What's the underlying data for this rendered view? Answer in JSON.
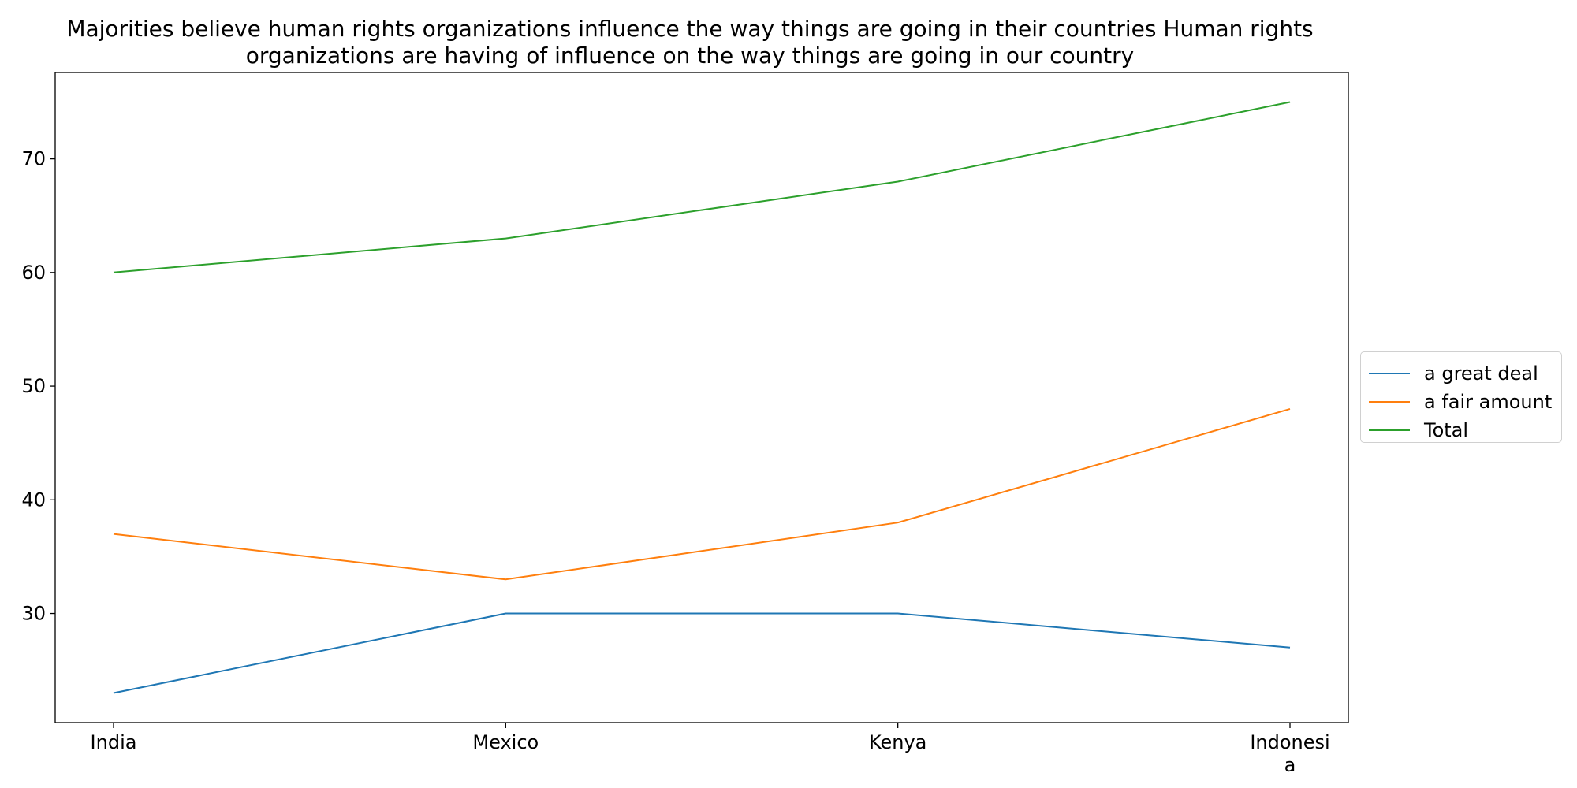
{
  "chart_data": {
    "type": "line",
    "title_lines": [
      "Majorities believe human rights organizations influence the way things are going in their countries Human rights",
      "organizations are having of influence on the way things are going in our country"
    ],
    "categories": [
      "India",
      "Mexico",
      "Kenya",
      "Indonesia"
    ],
    "category_label_lines": [
      [
        "India"
      ],
      [
        "Mexico"
      ],
      [
        "Kenya"
      ],
      [
        "Indonesi",
        "a"
      ]
    ],
    "xlabel": "",
    "ylabel": "",
    "yticks": [
      30,
      40,
      50,
      60,
      70
    ],
    "ylim": [
      20.4,
      77.6
    ],
    "grid": false,
    "legend_position": "center-right-outside",
    "series": [
      {
        "name": "a great deal",
        "color": "#1f77b4",
        "values": [
          23,
          30,
          30,
          27
        ]
      },
      {
        "name": "a fair amount",
        "color": "#ff7f0e",
        "values": [
          37,
          33,
          38,
          48
        ]
      },
      {
        "name": "Total",
        "color": "#2ca02c",
        "values": [
          60,
          63,
          68,
          75
        ]
      }
    ]
  }
}
